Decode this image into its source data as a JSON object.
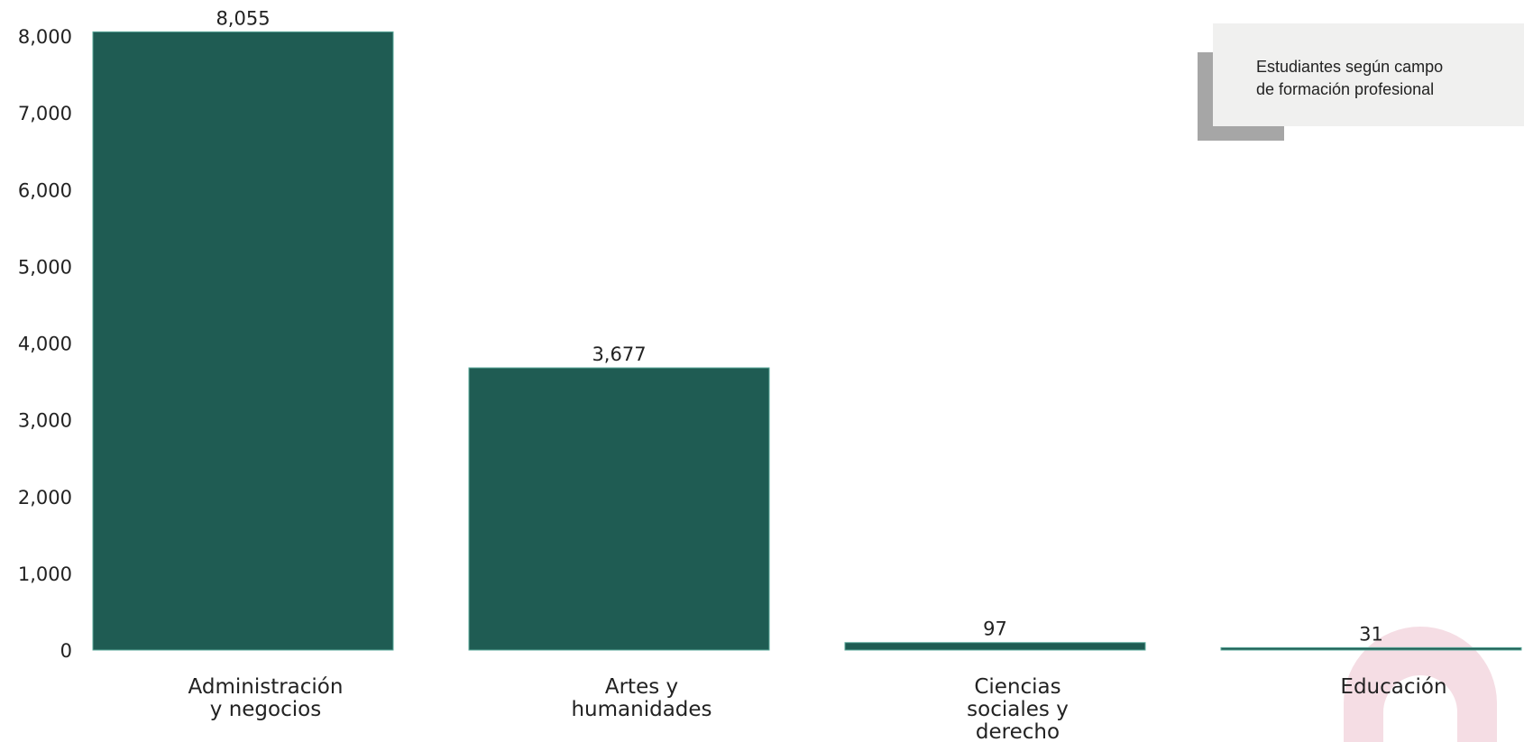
{
  "chart_data": {
    "type": "bar",
    "categories": [
      [
        "Administración",
        "y negocios"
      ],
      [
        "Artes y",
        "humanidades"
      ],
      [
        "Ciencias",
        "sociales y",
        "derecho"
      ],
      [
        "Educación"
      ]
    ],
    "values": [
      8055,
      3677,
      97,
      31
    ],
    "data_labels": [
      "8,055",
      "3,677",
      "97",
      "31"
    ],
    "y_ticks": [
      "0",
      "1,000",
      "2,000",
      "3,000",
      "4,000",
      "5,000",
      "6,000",
      "7,000",
      "8,000"
    ],
    "ylim": [
      0,
      8000
    ],
    "grid": false,
    "legend": {
      "lines": [
        "Estudiantes según campo",
        "de formación profesional"
      ],
      "placement": "top-right"
    },
    "colors": {
      "bar": "#1f5c53",
      "bar_edge": "#5aa89a",
      "legend_bg": "#f0f0ef",
      "legend_shadow": "#a6a6a6",
      "watermark": "#f5dde4"
    }
  }
}
